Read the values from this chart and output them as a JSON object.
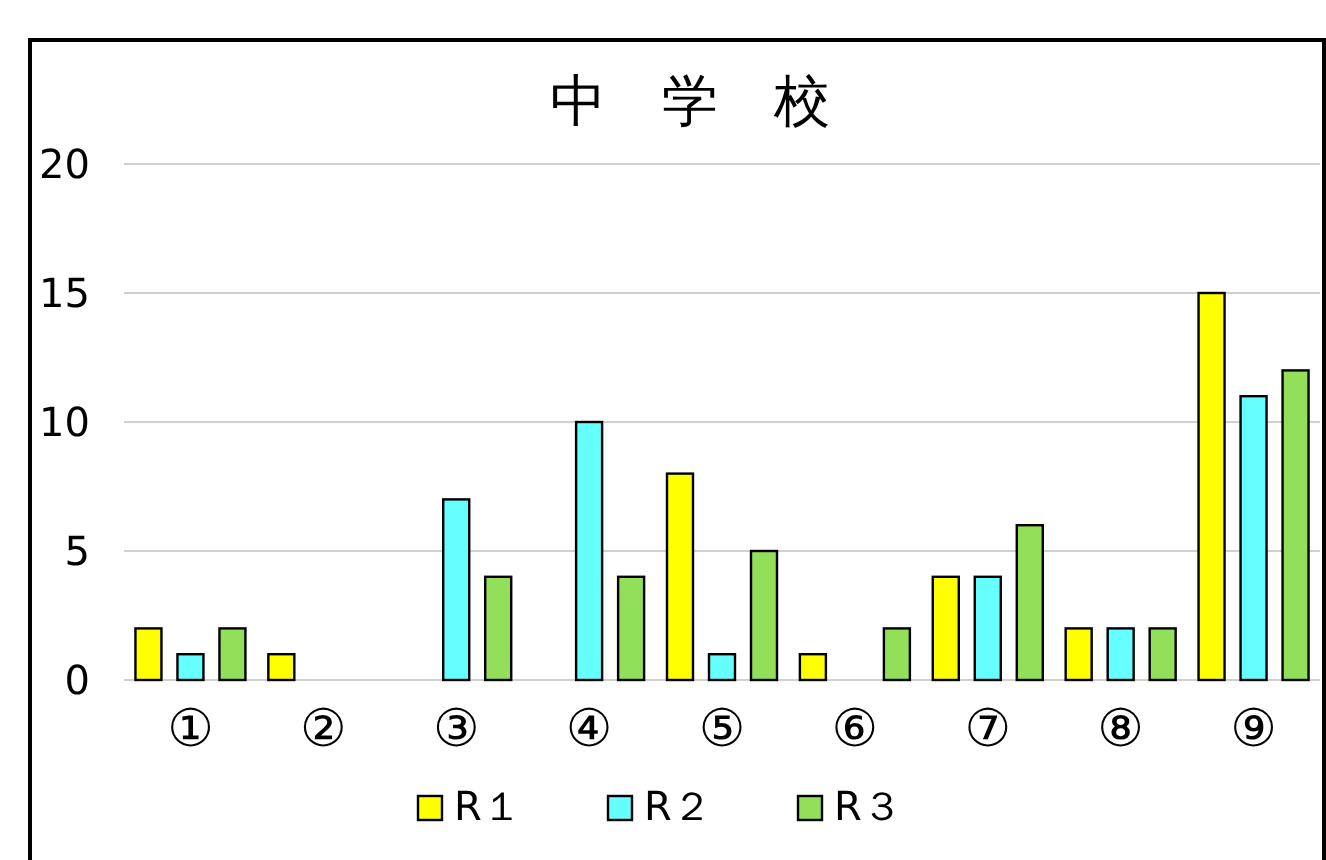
{
  "chart_data": {
    "type": "bar",
    "title": "中　学　校",
    "categories": [
      "①",
      "②",
      "③",
      "④",
      "⑤",
      "⑥",
      "⑦",
      "⑧",
      "⑨"
    ],
    "series": [
      {
        "name": "R１",
        "color": "#ffff00",
        "values": [
          2,
          1,
          0,
          0,
          8,
          1,
          4,
          2,
          15
        ]
      },
      {
        "name": "R２",
        "color": "#66ffff",
        "values": [
          1,
          0,
          7,
          10,
          1,
          0,
          4,
          2,
          11
        ]
      },
      {
        "name": "R３",
        "color": "#92e05a",
        "values": [
          2,
          0,
          4,
          4,
          5,
          2,
          6,
          2,
          12
        ]
      }
    ],
    "ylim": [
      0,
      20
    ],
    "yticks": [
      0,
      5,
      10,
      15,
      20
    ],
    "grid": "y",
    "legend": "bottom"
  }
}
